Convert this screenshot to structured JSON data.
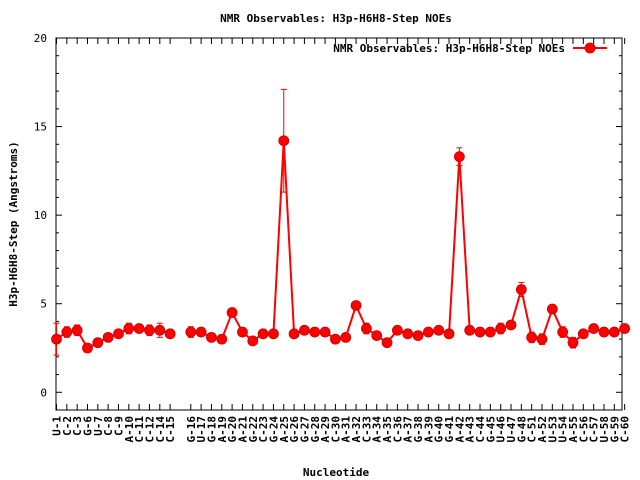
{
  "chart_data": {
    "type": "line",
    "title": "NMR Observables: H3p-H6H8-Step NOEs",
    "xlabel": "Nucleotide",
    "ylabel": "H3p-H6H8-Step (Angstroms)",
    "ylim": [
      -1,
      20
    ],
    "yticks": [
      0,
      5,
      10,
      15,
      20
    ],
    "grid": false,
    "legend_position": "top-right",
    "series": [
      {
        "name": "NMR Observables: H3p-H6H8-Step NOEs",
        "color": "#ff0000",
        "segments": [
          {
            "categories": [
              "U-1",
              "C-2",
              "C-3",
              "G-6",
              "U-7",
              "C-8",
              "C-9",
              "A-10",
              "C-11",
              "C-12",
              "C-14",
              "C-15"
            ],
            "values": [
              3.0,
              3.4,
              3.5,
              2.5,
              2.8,
              3.1,
              3.3,
              3.6,
              3.6,
              3.5,
              3.5,
              3.3
            ],
            "errors": [
              0.9,
              0.3,
              0.3,
              0.2,
              0.2,
              0.2,
              0.2,
              0.3,
              0.2,
              0.3,
              0.4,
              0.2
            ]
          },
          {
            "categories": [
              "G-16",
              "U-17",
              "G-18",
              "A-19",
              "G-20",
              "A-21",
              "G-22",
              "C-23",
              "G-24",
              "A-25",
              "G-26",
              "G-27",
              "G-28",
              "A-29",
              "C-30",
              "A-31",
              "A-32",
              "C-33",
              "A-34",
              "A-35",
              "C-36",
              "A-37",
              "G-38",
              "A-39",
              "G-40",
              "G-41",
              "A-42",
              "A-43",
              "C-44",
              "G-45",
              "U-46",
              "U-47",
              "G-48",
              "C-51",
              "A-52",
              "U-53",
              "U-54",
              "A-55",
              "C-56",
              "C-57",
              "U-58",
              "G-59",
              "C-60"
            ],
            "values": [
              3.4,
              3.4,
              3.1,
              3.0,
              4.5,
              3.4,
              2.9,
              3.3,
              3.3,
              14.2,
              3.3,
              3.5,
              3.4,
              3.4,
              3.0,
              3.1,
              4.9,
              3.6,
              3.2,
              2.8,
              3.5,
              3.3,
              3.2,
              3.4,
              3.5,
              3.3,
              13.3,
              3.5,
              3.4,
              3.4,
              3.6,
              3.8,
              5.8,
              3.1,
              3.0,
              4.7,
              3.4,
              2.8,
              3.3,
              3.6,
              3.4,
              3.4,
              3.6
            ],
            "errors": [
              0.3,
              0.2,
              0.2,
              0.2,
              0.2,
              0.2,
              0.2,
              0.2,
              0.2,
              2.9,
              0.2,
              0.2,
              0.2,
              0.2,
              0.2,
              0.2,
              0.2,
              0.3,
              0.2,
              0.2,
              0.2,
              0.2,
              0.2,
              0.2,
              0.2,
              0.2,
              0.5,
              0.2,
              0.2,
              0.2,
              0.3,
              0.2,
              0.4,
              0.3,
              0.3,
              0.2,
              0.3,
              0.3,
              0.2,
              0.2,
              0.2,
              0.2,
              0.2
            ]
          }
        ]
      }
    ]
  }
}
